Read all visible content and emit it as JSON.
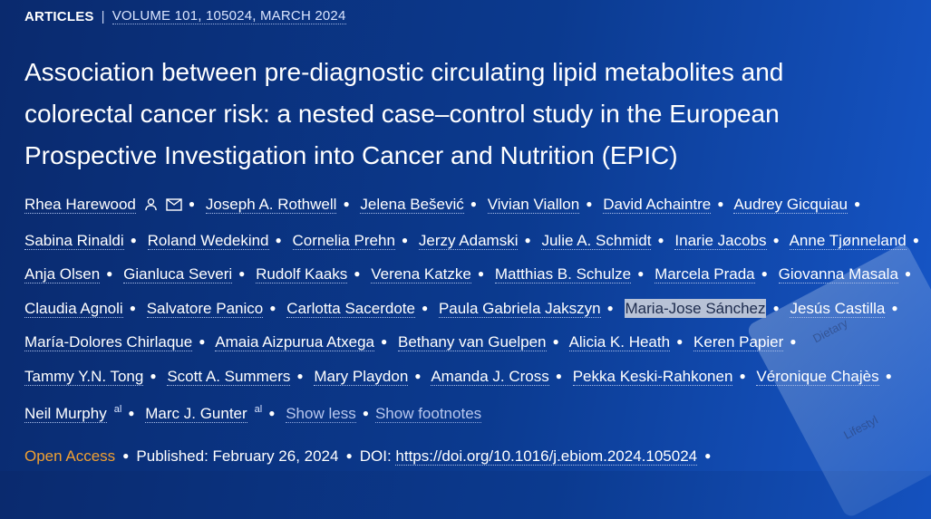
{
  "header": {
    "section": "ARTICLES",
    "separator": "|",
    "volume_line": "VOLUME 101, 105024, MARCH 2024"
  },
  "title": "Association between pre-diagnostic circulating lipid metabolites and colorectal cancer risk: a nested case–control study in the European Prospective Investigation into Cancer and Nutrition (EPIC)",
  "authors": [
    "Rhea Harewood",
    "Joseph A. Rothwell",
    "Jelena Bešević",
    "Vivian Viallon",
    "David Achaintre",
    "Audrey Gicquiau",
    "Sabina Rinaldi",
    "Roland Wedekind",
    "Cornelia Prehn",
    "Jerzy Adamski",
    "Julie A. Schmidt",
    "Inarie Jacobs",
    "Anne Tjønneland",
    "Anja Olsen",
    "Gianluca Severi",
    "Rudolf Kaaks",
    "Verena Katzke",
    "Matthias B. Schulze",
    "Marcela Prada",
    "Giovanna Masala",
    "Claudia Agnoli",
    "Salvatore Panico",
    "Carlotta Sacerdote",
    "Paula Gabriela Jakszyn",
    "Maria-Jose Sánchez",
    "Jesús Castilla",
    "María-Dolores Chirlaque",
    "Amaia Aizpurua Atxega",
    "Bethany van Guelpen",
    "Alicia K. Heath",
    "Keren Papier",
    "Tammy Y.N. Tong",
    "Scott A. Summers",
    "Mary Playdon",
    "Amanda J. Cross",
    "Pekka Keski-Rahkonen",
    "Véronique Chajès",
    "Neil Murphy",
    "Marc J. Gunter"
  ],
  "author_sup": "al",
  "links": {
    "show_less": "Show less",
    "show_footnotes": "Show footnotes"
  },
  "meta": {
    "open_access": "Open Access",
    "published_label": "Published:",
    "published_date": "February 26, 2024",
    "doi_label": "DOI:",
    "doi": "https://doi.org/10.1016/j.ebiom.2024.105024"
  },
  "decor": {
    "word1": "Dietary",
    "word2": "Lifestyl"
  },
  "icons": [
    "person-icon",
    "mail-icon"
  ]
}
